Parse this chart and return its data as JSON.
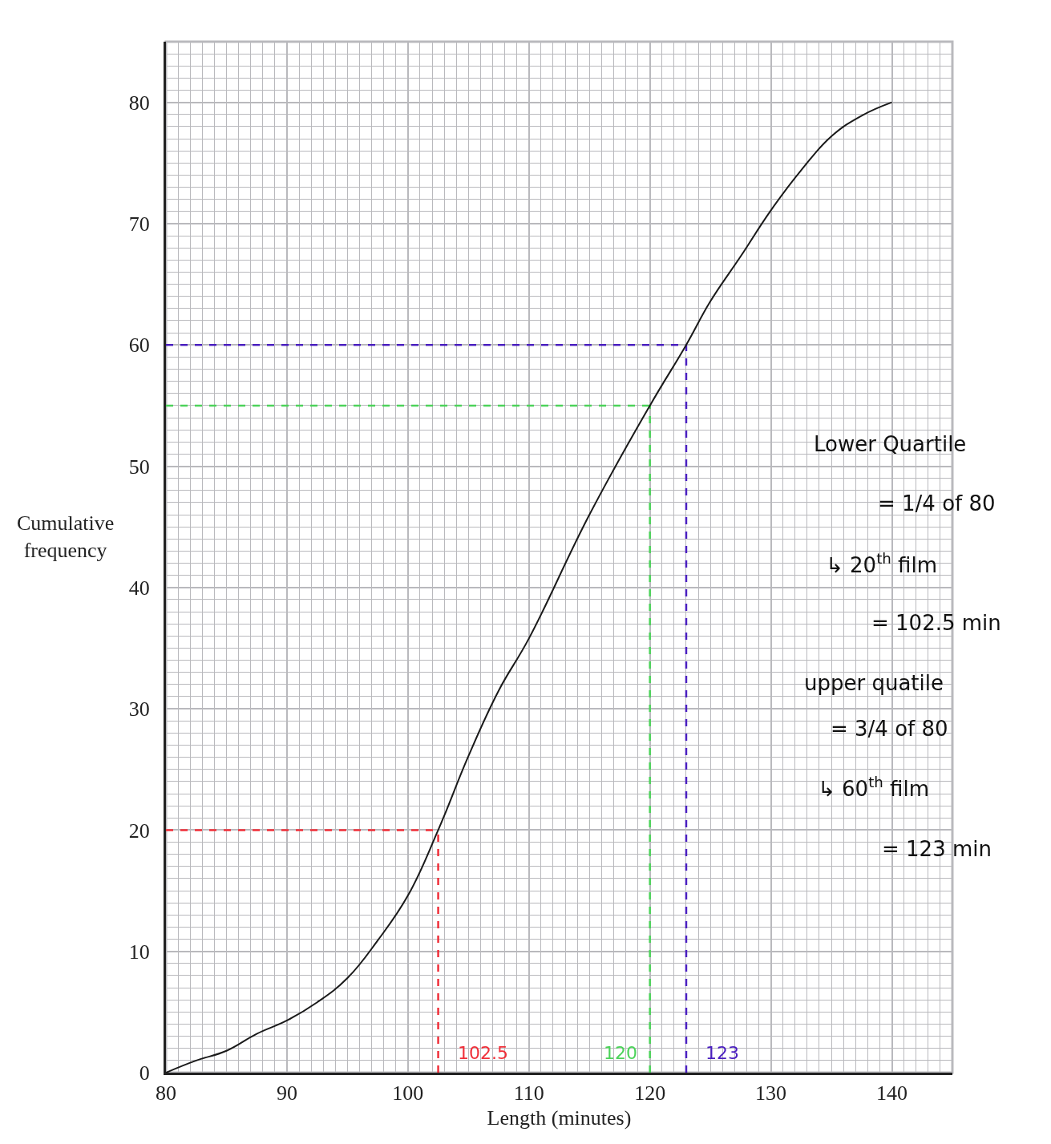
{
  "chart_data": {
    "type": "line",
    "xlabel": "Length (minutes)",
    "ylabel": "Cumulative frequency",
    "x": [
      80,
      82.5,
      85,
      87.5,
      90,
      92.5,
      95,
      97.5,
      100,
      102.5,
      105,
      107.5,
      110,
      115,
      120,
      123,
      125,
      127.5,
      130,
      132.5,
      135,
      137.5,
      140
    ],
    "series": [
      {
        "color": "#1a1a1a",
        "values": [
          0,
          1.0,
          1.8,
          3.2,
          4.3,
          5.8,
          7.8,
          10.9,
          14.6,
          20,
          26.1,
          31.5,
          35.8,
          46,
          55,
          60,
          63.6,
          67.3,
          71.1,
          74.4,
          77.2,
          78.9,
          80
        ]
      }
    ],
    "xlim": [
      80,
      145
    ],
    "xticks": [
      80,
      90,
      100,
      110,
      120,
      130,
      140
    ],
    "ylim": [
      0,
      85
    ],
    "yticks": [
      0,
      10,
      20,
      30,
      40,
      50,
      60,
      70,
      80
    ],
    "grid": true,
    "marker": "none",
    "line_style": "solid",
    "ref_lines": [
      {
        "axis": "y",
        "value": 20,
        "color": "#f0303a",
        "line_style": "dashed"
      },
      {
        "axis": "x",
        "value": 102.5,
        "label": "102.5",
        "color": "#f0303a",
        "line_style": "dashed"
      },
      {
        "axis": "y",
        "value": 55,
        "color": "#4cd35a",
        "line_style": "dashed"
      },
      {
        "axis": "x",
        "value": 120,
        "label": "120",
        "color": "#4cd35a",
        "line_style": "dashed"
      },
      {
        "axis": "y",
        "value": 60,
        "color": "#4a1fc0",
        "line_style": "dashed"
      },
      {
        "axis": "x",
        "value": 123,
        "label": "123",
        "color": "#4a1fc0",
        "line_style": "dashed"
      }
    ],
    "annotations": [
      "Lower Quartile",
      "= 1/4 of 80",
      "↳ 20$^{th}$ film",
      "= 102.5 min",
      "upper quatile",
      "= 3/4 of 80",
      "↳ 60$^{th}$ film",
      "= 123 min"
    ]
  }
}
